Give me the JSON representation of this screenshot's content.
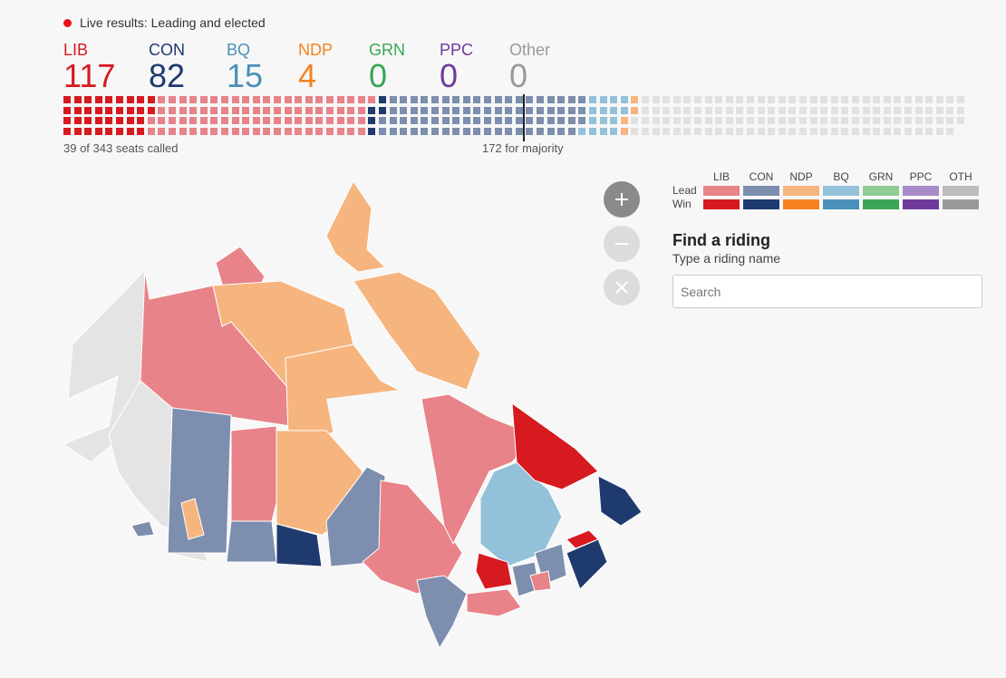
{
  "status": {
    "live_label": "Live results: Leading and elected",
    "live_color": "#e8141b"
  },
  "parties": [
    {
      "abbr": "LIB",
      "seats": "117",
      "color": "#d71920"
    },
    {
      "abbr": "CON",
      "seats": "82",
      "color": "#1f3a6e"
    },
    {
      "abbr": "BQ",
      "seats": "15",
      "color": "#4a90b8"
    },
    {
      "abbr": "NDP",
      "seats": "4",
      "color": "#f58220"
    },
    {
      "abbr": "GRN",
      "seats": "0",
      "color": "#3aa655"
    },
    {
      "abbr": "PPC",
      "seats": "0",
      "color": "#6e3b9c"
    },
    {
      "abbr": "Other",
      "seats": "0",
      "color": "#999999"
    }
  ],
  "seat_bar": {
    "total_seats": 343,
    "majority_seats": 172,
    "segments": [
      {
        "party": "LIB",
        "status": "Win",
        "count": 34,
        "color": "#d71920"
      },
      {
        "party": "LIB",
        "status": "Lead",
        "count": 83,
        "color": "#e88389"
      },
      {
        "party": "CON",
        "status": "Win",
        "count": 5,
        "color": "#1f3a6e"
      },
      {
        "party": "CON",
        "status": "Lead",
        "count": 77,
        "color": "#7d8eae"
      },
      {
        "party": "BQ",
        "status": "Lead",
        "count": 15,
        "color": "#93c1d9"
      },
      {
        "party": "NDP",
        "status": "Lead",
        "count": 4,
        "color": "#f6b57e"
      },
      {
        "party": "Uncalled",
        "status": "",
        "count": 125,
        "color": "#e1e1e1"
      }
    ]
  },
  "summary": {
    "called_label": "39 of 343 seats called",
    "majority_label": "172 for majority"
  },
  "legend": {
    "columns": [
      "LIB",
      "CON",
      "NDP",
      "BQ",
      "GRN",
      "PPC",
      "OTH"
    ],
    "rows": [
      {
        "label": "Lead",
        "colors": [
          "#e88389",
          "#7d8eae",
          "#f6b57e",
          "#93c1d9",
          "#8fcb94",
          "#a98bc9",
          "#bdbdbd"
        ]
      },
      {
        "label": "Win",
        "colors": [
          "#d71920",
          "#1f3a6e",
          "#f58220",
          "#4a90b8",
          "#3aa655",
          "#6e3b9c",
          "#999999"
        ]
      }
    ]
  },
  "zoom": {
    "in_icon": "plus-icon",
    "out_icon": "minus-icon",
    "reset_icon": "close-icon"
  },
  "finder": {
    "title": "Find a riding",
    "subtitle": "Type a riding name",
    "placeholder": "Search"
  },
  "map": {
    "regions": [
      {
        "name": "Yukon",
        "result": "LIB Lead"
      },
      {
        "name": "Northwest Territories",
        "result": "NDP Lead"
      },
      {
        "name": "Nunavut",
        "result": "NDP Lead"
      },
      {
        "name": "British Columbia",
        "result": "Uncalled"
      },
      {
        "name": "Alberta",
        "result": "CON Lead"
      },
      {
        "name": "Saskatchewan",
        "result": "CON Lead"
      },
      {
        "name": "Manitoba",
        "result": "NDP Lead"
      },
      {
        "name": "Ontario",
        "result": "LIB Lead"
      },
      {
        "name": "Quebec",
        "result": "BQ Lead"
      },
      {
        "name": "Newfoundland and Labrador",
        "result": "LIB Win"
      },
      {
        "name": "Atlantic",
        "result": "LIB Win"
      }
    ]
  }
}
